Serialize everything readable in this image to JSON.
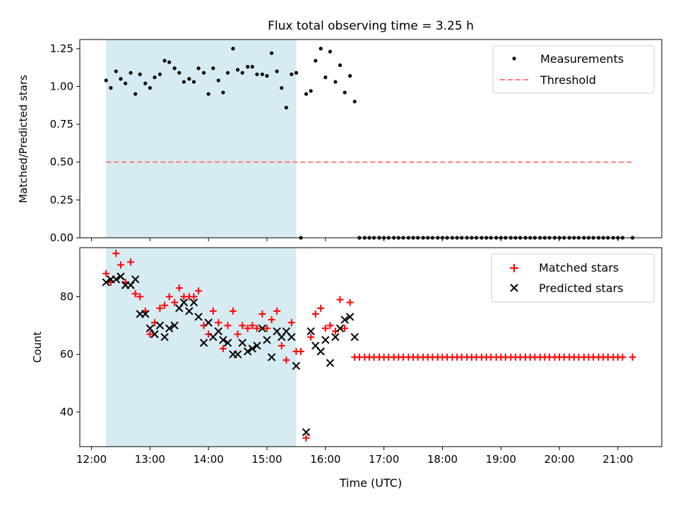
{
  "chart_data": {
    "type": "scatter",
    "title": "Flux total observing time = 3.25 h",
    "xlabel": "Time (UTC)",
    "x_unit": "hours UTC",
    "xlim": [
      11.8,
      21.75
    ],
    "x_ticks": [
      {
        "value": 12,
        "label": "12:00"
      },
      {
        "value": 13,
        "label": "13:00"
      },
      {
        "value": 14,
        "label": "14:00"
      },
      {
        "value": 15,
        "label": "15:00"
      },
      {
        "value": 16,
        "label": "16:00"
      },
      {
        "value": 17,
        "label": "17:00"
      },
      {
        "value": 18,
        "label": "18:00"
      },
      {
        "value": 19,
        "label": "19:00"
      },
      {
        "value": 20,
        "label": "20:00"
      },
      {
        "value": 21,
        "label": "21:00"
      }
    ],
    "shaded_region": {
      "x_start": 12.25,
      "x_end": 15.5,
      "color": "#add8e6"
    },
    "panels": [
      {
        "id": "ratio",
        "ylabel": "Matched/Predicted stars",
        "ylim": [
          0,
          1.31
        ],
        "y_ticks": [
          {
            "value": 0,
            "label": "0.00"
          },
          {
            "value": 0.25,
            "label": "0.25"
          },
          {
            "value": 0.5,
            "label": "0.50"
          },
          {
            "value": 0.75,
            "label": "0.75"
          },
          {
            "value": 1.0,
            "label": "1.00"
          },
          {
            "value": 1.25,
            "label": "1.25"
          }
        ],
        "legend_position": "top-right",
        "series": [
          {
            "name": "Measurements",
            "marker": "dot",
            "color": "#000000",
            "x": [
              12.25,
              12.33,
              12.42,
              12.5,
              12.58,
              12.67,
              12.75,
              12.83,
              12.92,
              13.0,
              13.08,
              13.17,
              13.25,
              13.33,
              13.42,
              13.5,
              13.58,
              13.67,
              13.75,
              13.83,
              13.92,
              14.0,
              14.08,
              14.17,
              14.25,
              14.33,
              14.42,
              14.5,
              14.58,
              14.67,
              14.75,
              14.83,
              14.92,
              15.0,
              15.08,
              15.17,
              15.25,
              15.33,
              15.42,
              15.5,
              15.58,
              15.67,
              15.75,
              15.83,
              15.92,
              16.0,
              16.08,
              16.17,
              16.25,
              16.33,
              16.42,
              16.5,
              16.58,
              16.67,
              16.75,
              16.83,
              16.92,
              17.0,
              17.08,
              17.17,
              17.25,
              17.33,
              17.42,
              17.5,
              17.58,
              17.67,
              17.75,
              17.83,
              17.92,
              18.0,
              18.08,
              18.17,
              18.25,
              18.33,
              18.42,
              18.5,
              18.58,
              18.67,
              18.75,
              18.83,
              18.92,
              19.0,
              19.08,
              19.17,
              19.25,
              19.33,
              19.42,
              19.5,
              19.58,
              19.67,
              19.75,
              19.83,
              19.92,
              20.0,
              20.08,
              20.17,
              20.25,
              20.33,
              20.42,
              20.5,
              20.58,
              20.67,
              20.75,
              20.83,
              20.92,
              21.0,
              21.08,
              21.25
            ],
            "y": [
              1.04,
              0.99,
              1.1,
              1.05,
              1.02,
              1.09,
              0.95,
              1.08,
              1.02,
              0.99,
              1.06,
              1.08,
              1.17,
              1.16,
              1.12,
              1.09,
              1.03,
              1.05,
              1.03,
              1.12,
              1.09,
              0.95,
              1.12,
              1.04,
              0.96,
              1.09,
              1.25,
              1.11,
              1.09,
              1.13,
              1.13,
              1.08,
              1.08,
              1.07,
              1.22,
              1.1,
              0.99,
              0.86,
              1.08,
              1.09,
              0.0,
              0.95,
              0.97,
              1.17,
              1.25,
              1.06,
              1.23,
              1.03,
              1.14,
              0.96,
              1.07,
              0.9,
              0.0,
              0.0,
              0.0,
              0.0,
              0.0,
              0.0,
              0.0,
              0.0,
              0.0,
              0.0,
              0.0,
              0.0,
              0.0,
              0.0,
              0.0,
              0.0,
              0.0,
              0.0,
              0.0,
              0.0,
              0.0,
              0.0,
              0.0,
              0.0,
              0.0,
              0.0,
              0.0,
              0.0,
              0.0,
              0.0,
              0.0,
              0.0,
              0.0,
              0.0,
              0.0,
              0.0,
              0.0,
              0.0,
              0.0,
              0.0,
              0.0,
              0.0,
              0.0,
              0.0,
              0.0,
              0.0,
              0.0,
              0.0,
              0.0,
              0.0,
              0.0,
              0.0,
              0.0,
              0.0,
              0.0,
              0.0
            ]
          },
          {
            "name": "Threshold",
            "marker": "dashed-line",
            "color": "#ff7b7b",
            "x": [
              12.25,
              21.25
            ],
            "y": [
              0.5,
              0.5
            ]
          }
        ]
      },
      {
        "id": "count",
        "ylabel": "Count",
        "ylim": [
          28,
          97
        ],
        "y_ticks": [
          {
            "value": 40,
            "label": "40"
          },
          {
            "value": 60,
            "label": "60"
          },
          {
            "value": 80,
            "label": "80"
          }
        ],
        "legend_position": "top-right",
        "series": [
          {
            "name": "Matched stars",
            "marker": "plus",
            "color": "#ff0000",
            "x": [
              12.25,
              12.33,
              12.42,
              12.5,
              12.58,
              12.67,
              12.75,
              12.83,
              12.92,
              13.0,
              13.08,
              13.17,
              13.25,
              13.33,
              13.42,
              13.5,
              13.58,
              13.67,
              13.75,
              13.83,
              13.92,
              14.0,
              14.08,
              14.17,
              14.25,
              14.33,
              14.42,
              14.5,
              14.58,
              14.67,
              14.75,
              14.83,
              14.92,
              15.0,
              15.08,
              15.17,
              15.25,
              15.33,
              15.42,
              15.5,
              15.58,
              15.67,
              15.75,
              15.83,
              15.92,
              16.0,
              16.08,
              16.17,
              16.25,
              16.33,
              16.42,
              16.5,
              16.58,
              16.67,
              16.75,
              16.83,
              16.92,
              17.0,
              17.08,
              17.17,
              17.25,
              17.33,
              17.42,
              17.5,
              17.58,
              17.67,
              17.75,
              17.83,
              17.92,
              18.0,
              18.08,
              18.17,
              18.25,
              18.33,
              18.42,
              18.5,
              18.58,
              18.67,
              18.75,
              18.83,
              18.92,
              19.0,
              19.08,
              19.17,
              19.25,
              19.33,
              19.42,
              19.5,
              19.58,
              19.67,
              19.75,
              19.83,
              19.92,
              20.0,
              20.08,
              20.17,
              20.25,
              20.33,
              20.42,
              20.5,
              20.58,
              20.67,
              20.75,
              20.83,
              20.92,
              21.0,
              21.08,
              21.25
            ],
            "y": [
              88,
              85,
              95,
              91,
              85,
              92,
              81,
              80,
              75,
              67,
              71,
              76,
              77,
              80,
              78,
              83,
              80,
              80,
              80,
              82,
              70,
              67,
              75,
              71,
              62,
              70,
              75,
              67,
              70,
              69,
              70,
              69,
              74,
              69,
              72,
              75,
              63,
              58,
              71,
              61,
              61,
              31,
              66,
              74,
              76,
              69,
              70,
              68,
              79,
              69,
              78,
              59,
              59,
              59,
              59,
              59,
              59,
              59,
              59,
              59,
              59,
              59,
              59,
              59,
              59,
              59,
              59,
              59,
              59,
              59,
              59,
              59,
              59,
              59,
              59,
              59,
              59,
              59,
              59,
              59,
              59,
              59,
              59,
              59,
              59,
              59,
              59,
              59,
              59,
              59,
              59,
              59,
              59,
              59,
              59,
              59,
              59,
              59,
              59,
              59,
              59,
              59,
              59,
              59,
              59,
              59,
              59,
              59
            ]
          },
          {
            "name": "Predicted stars",
            "marker": "x",
            "color": "#000000",
            "x": [
              12.25,
              12.33,
              12.42,
              12.5,
              12.58,
              12.67,
              12.75,
              12.83,
              12.92,
              13.0,
              13.08,
              13.17,
              13.25,
              13.33,
              13.42,
              13.5,
              13.58,
              13.67,
              13.75,
              13.83,
              13.92,
              14.0,
              14.08,
              14.17,
              14.25,
              14.33,
              14.42,
              14.5,
              14.58,
              14.67,
              14.75,
              14.83,
              14.92,
              15.0,
              15.08,
              15.17,
              15.25,
              15.33,
              15.42,
              15.5,
              15.67,
              15.75,
              15.83,
              15.92,
              16.0,
              16.08,
              16.17,
              16.25,
              16.33,
              16.42,
              16.5
            ],
            "y": [
              85,
              86,
              86,
              87,
              84,
              84,
              86,
              74,
              74,
              69,
              67,
              70,
              66,
              69,
              70,
              76,
              78,
              75,
              78,
              73,
              64,
              71,
              66,
              68,
              65,
              64,
              60,
              60,
              64,
              61,
              62,
              63,
              69,
              65,
              59,
              68,
              66,
              68,
              66,
              56,
              33,
              68,
              63,
              61,
              65,
              57,
              66,
              69,
              72,
              73,
              66
            ]
          }
        ]
      }
    ]
  }
}
